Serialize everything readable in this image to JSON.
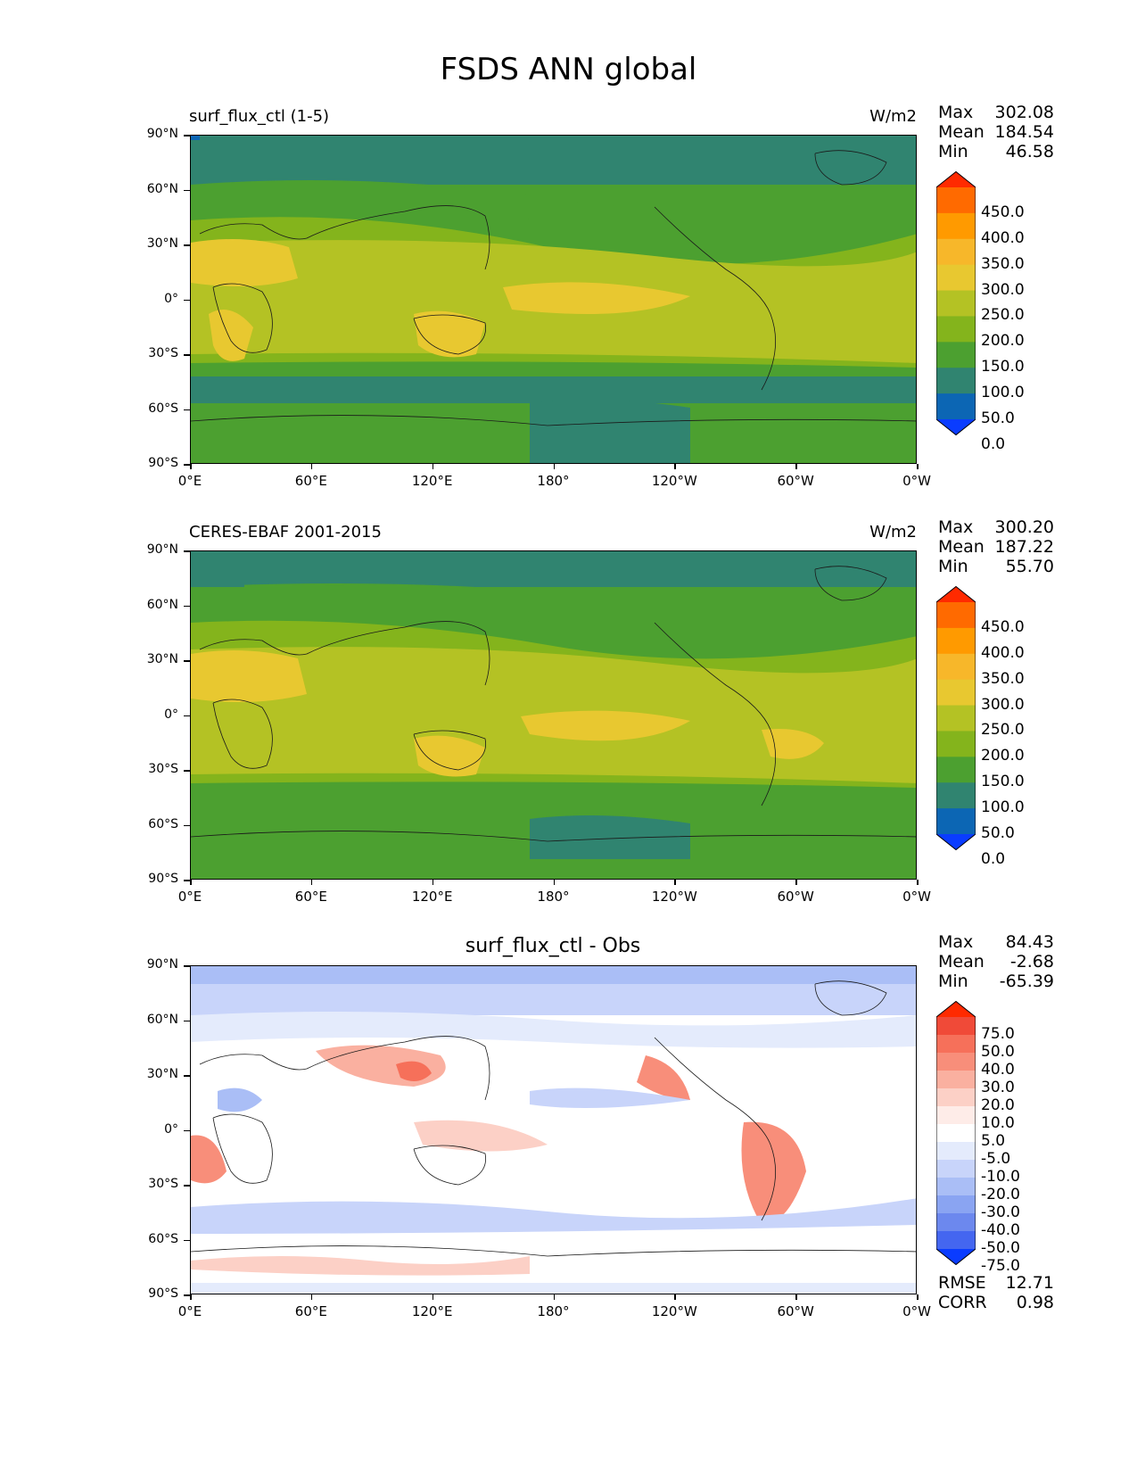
{
  "title": "FSDS ANN global",
  "x_ticks": [
    "0°E",
    "60°E",
    "120°E",
    "180°",
    "120°W",
    "60°W",
    "0°W"
  ],
  "y_ticks": [
    "90°N",
    "60°N",
    "30°N",
    "0°",
    "30°S",
    "60°S",
    "90°S"
  ],
  "panels": [
    {
      "title": "surf_flux_ctl (1-5)",
      "units": "W/m2",
      "stats": {
        "max_label": "Max",
        "max": "302.08",
        "mean_label": "Mean",
        "mean": "184.54",
        "min_label": "Min",
        "min": "46.58"
      },
      "colorbar": {
        "labels": [
          "450.0",
          "400.0",
          "350.0",
          "300.0",
          "250.0",
          "200.0",
          "150.0",
          "100.0",
          "50.0",
          "0.0"
        ],
        "colors": [
          "#ff2a00",
          "#ff6a00",
          "#ff9a00",
          "#f7b72a",
          "#e8c830",
          "#b4c224",
          "#84b41c",
          "#4ca030",
          "#308470",
          "#0c66b4",
          "#0a3cff"
        ]
      }
    },
    {
      "title": "CERES-EBAF 2001-2015",
      "units": "W/m2",
      "stats": {
        "max_label": "Max",
        "max": "300.20",
        "mean_label": "Mean",
        "mean": "187.22",
        "min_label": "Min",
        "min": "55.70"
      },
      "colorbar": {
        "labels": [
          "450.0",
          "400.0",
          "350.0",
          "300.0",
          "250.0",
          "200.0",
          "150.0",
          "100.0",
          "50.0",
          "0.0"
        ],
        "colors": [
          "#ff2a00",
          "#ff6a00",
          "#ff9a00",
          "#f7b72a",
          "#e8c830",
          "#b4c224",
          "#84b41c",
          "#4ca030",
          "#308470",
          "#0c66b4",
          "#0a3cff"
        ]
      }
    },
    {
      "title": "surf_flux_ctl - Obs",
      "stats": {
        "max_label": "Max",
        "max": "84.43",
        "mean_label": "Mean",
        "mean": "-2.68",
        "min_label": "Min",
        "min": "-65.39"
      },
      "extra_stats": {
        "rmse_label": "RMSE",
        "rmse": "12.71",
        "corr_label": "CORR",
        "corr": "0.98"
      },
      "colorbar": {
        "labels": [
          "75.0",
          "50.0",
          "40.0",
          "30.0",
          "20.0",
          "10.0",
          "5.0",
          "-5.0",
          "-10.0",
          "-20.0",
          "-30.0",
          "-40.0",
          "-50.0",
          "-75.0"
        ],
        "colors": [
          "#ff2a00",
          "#f04a38",
          "#f6705a",
          "#f88e7a",
          "#fab0a0",
          "#fcd0c6",
          "#feece8",
          "#ffffff",
          "#e4ebfc",
          "#c8d4fa",
          "#aabef6",
          "#8aa4f2",
          "#6c88ee",
          "#4466f0",
          "#0a3cff"
        ]
      }
    }
  ]
}
